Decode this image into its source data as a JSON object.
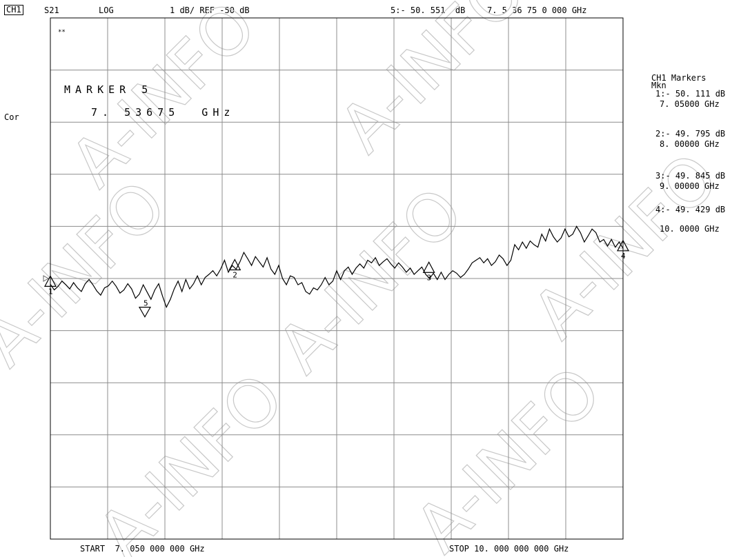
{
  "header": {
    "channel": "CH1",
    "param": "S21",
    "format": "LOG",
    "scale": "1 dB/ REF -50 dB",
    "active_marker": "5:- 50. 551  dB",
    "active_freq": "7. 5 36 75 0 000 GHz"
  },
  "left": {
    "cor": "Cor"
  },
  "plot": {
    "star_mark": "**"
  },
  "marker_box": {
    "line1": "MARKER 5",
    "line2": "7. 53675  GHz"
  },
  "markers_panel": {
    "title": "CH1 Markers",
    "mode": "Mkn",
    "m1_val": "1:- 50. 111 dB",
    "m1_freq": "7. 05000 GHz",
    "m2_val": "2:- 49. 795 dB",
    "m2_freq": "8. 00000 GHz",
    "m3_val": "3:- 49. 845 dB",
    "m3_freq": "9. 00000 GHz",
    "m4_val": "4:- 49. 429 dB",
    "m4_freq": "10. 0000 GHz"
  },
  "footer": {
    "start": "START  7. 050 000 000 GHz",
    "stop": "STOP 10. 000 000 000 GHz"
  },
  "watermark": "A-INFO",
  "chart_data": {
    "type": "line",
    "x_range_ghz": [
      7.05,
      10.0
    ],
    "y_range_db": [
      -55,
      -45
    ],
    "y_ref_db": -50,
    "y_scale_db_per_div": 1,
    "divisions": {
      "x": 10,
      "y": 10
    },
    "grid": true,
    "series": [
      {
        "values_db": [
          -50.11,
          -50.22,
          -50.15,
          -50.05,
          -50.12,
          -50.2,
          -50.08,
          -50.18,
          -50.25,
          -50.1,
          -50.02,
          -50.12,
          -50.24,
          -50.32,
          -50.18,
          -50.14,
          -50.05,
          -50.15,
          -50.28,
          -50.22,
          -50.1,
          -50.2,
          -50.38,
          -50.3,
          -50.12,
          -50.26,
          -50.4,
          -50.22,
          -50.1,
          -50.34,
          -50.55,
          -50.4,
          -50.2,
          -50.05,
          -50.25,
          -50.02,
          -50.2,
          -50.1,
          -49.95,
          -50.12,
          -49.98,
          -49.92,
          -49.85,
          -49.95,
          -49.82,
          -49.65,
          -49.88,
          -49.75,
          -49.82,
          -49.68,
          -49.5,
          -49.62,
          -49.75,
          -49.58,
          -49.68,
          -49.78,
          -49.6,
          -49.82,
          -49.92,
          -49.75,
          -50.0,
          -50.12,
          -49.95,
          -49.98,
          -50.12,
          -50.08,
          -50.25,
          -50.3,
          -50.18,
          -50.22,
          -50.12,
          -49.98,
          -50.12,
          -50.05,
          -49.85,
          -50.02,
          -49.85,
          -49.78,
          -49.92,
          -49.8,
          -49.72,
          -49.8,
          -49.65,
          -49.7,
          -49.6,
          -49.75,
          -49.68,
          -49.62,
          -49.72,
          -49.8,
          -49.7,
          -49.78,
          -49.88,
          -49.8,
          -49.92,
          -49.85,
          -49.78,
          -49.92,
          -50.0,
          -49.9,
          -50.02,
          -49.88,
          -50.02,
          -49.92,
          -49.85,
          -49.9,
          -49.98,
          -49.92,
          -49.82,
          -49.7,
          -49.65,
          -49.6,
          -49.7,
          -49.62,
          -49.75,
          -49.68,
          -49.55,
          -49.62,
          -49.75,
          -49.65,
          -49.35,
          -49.45,
          -49.3,
          -49.42,
          -49.28,
          -49.35,
          -49.4,
          -49.15,
          -49.28,
          -49.05,
          -49.2,
          -49.3,
          -49.22,
          -49.05,
          -49.2,
          -49.15,
          -49.0,
          -49.12,
          -49.3,
          -49.18,
          -49.05,
          -49.12,
          -49.3,
          -49.25,
          -49.38,
          -49.25,
          -49.4,
          -49.3,
          -49.42
        ]
      }
    ],
    "markers": [
      {
        "id": "1",
        "freq_ghz": 7.05,
        "db": -50.111,
        "shape": "up"
      },
      {
        "id": "2",
        "freq_ghz": 8.0,
        "db": -49.795,
        "shape": "up"
      },
      {
        "id": "3",
        "freq_ghz": 9.0,
        "db": -49.845,
        "shape": "up"
      },
      {
        "id": "4",
        "freq_ghz": 10.0,
        "db": -49.429,
        "shape": "up"
      },
      {
        "id": "5",
        "freq_ghz": 7.53675,
        "db": -50.551,
        "shape": "down"
      }
    ],
    "ref_position_db": -50
  }
}
